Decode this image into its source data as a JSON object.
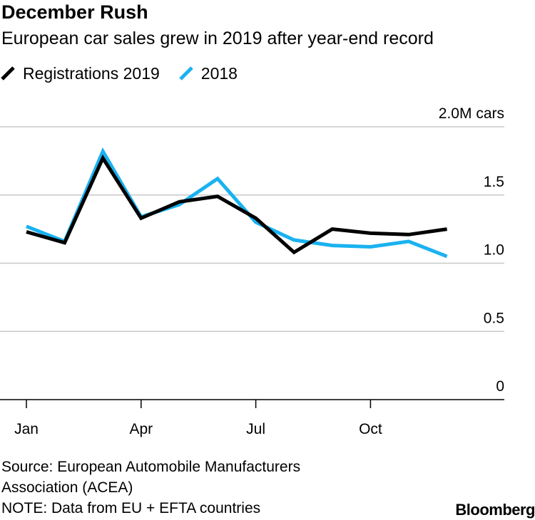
{
  "header": {
    "title": "December Rush",
    "subtitle": "European car sales grew in 2019 after year-end record"
  },
  "legend": [
    {
      "label": "Registrations 2019",
      "color": "#000000"
    },
    {
      "label": "2018",
      "color": "#1ab2f0"
    }
  ],
  "chart_data": {
    "type": "line",
    "title": "December Rush",
    "subtitle": "European car sales grew in 2019 after year-end record",
    "xlabel": "",
    "ylabel": "cars",
    "x": [
      "Jan",
      "Feb",
      "Mar",
      "Apr",
      "May",
      "Jun",
      "Jul",
      "Aug",
      "Sep",
      "Oct",
      "Nov",
      "Dec"
    ],
    "x_tick_labels": [
      {
        "month_index": 0,
        "label": "Jan"
      },
      {
        "month_index": 3,
        "label": "Apr"
      },
      {
        "month_index": 6,
        "label": "Jul"
      },
      {
        "month_index": 9,
        "label": "Oct"
      }
    ],
    "ylim": [
      0,
      2.0
    ],
    "y_ticks": [
      {
        "value": 2.0,
        "label": "2.0M cars"
      },
      {
        "value": 1.5,
        "label": "1.5"
      },
      {
        "value": 1.0,
        "label": "1.0"
      },
      {
        "value": 0.5,
        "label": "0.5"
      },
      {
        "value": 0,
        "label": "0"
      }
    ],
    "grid": true,
    "series": [
      {
        "name": "2018",
        "color": "#1ab2f0",
        "values": [
          1.27,
          1.16,
          1.82,
          1.34,
          1.43,
          1.62,
          1.3,
          1.17,
          1.13,
          1.12,
          1.16,
          1.05
        ]
      },
      {
        "name": "Registrations 2019",
        "color": "#000000",
        "values": [
          1.23,
          1.15,
          1.77,
          1.33,
          1.45,
          1.49,
          1.33,
          1.08,
          1.25,
          1.22,
          1.21,
          1.25
        ]
      }
    ]
  },
  "footer": {
    "source_line1": "Source: European Automobile Manufacturers",
    "source_line2": "Association (ACEA)",
    "note": "NOTE: Data from EU + EFTA countries"
  },
  "brand": "Bloomberg"
}
